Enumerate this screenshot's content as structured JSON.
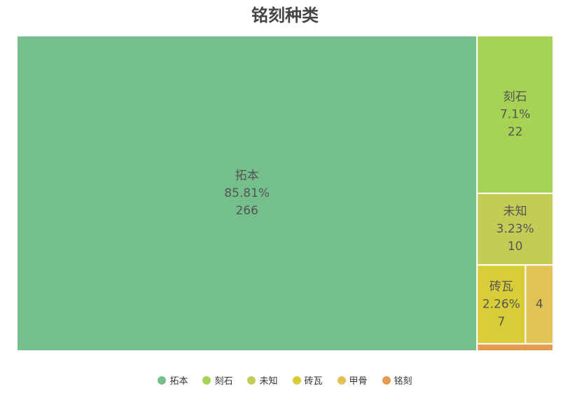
{
  "chart_data": {
    "type": "treemap",
    "title": "铭刻种类",
    "items": [
      {
        "name": "拓本",
        "value": 266,
        "percent": "85.81%",
        "color": "#74bf8c"
      },
      {
        "name": "刻石",
        "value": 22,
        "percent": "7.1%",
        "color": "#a6d354"
      },
      {
        "name": "未知",
        "value": 10,
        "percent": "3.23%",
        "color": "#c3cd55"
      },
      {
        "name": "砖瓦",
        "value": 7,
        "percent": "2.26%",
        "color": "#d9cd37"
      },
      {
        "name": "甲骨",
        "value": 4,
        "percent": "",
        "color": "#e0c255"
      },
      {
        "name": "铭刻",
        "value": 1,
        "percent": "",
        "color": "#e39c4e"
      }
    ]
  }
}
